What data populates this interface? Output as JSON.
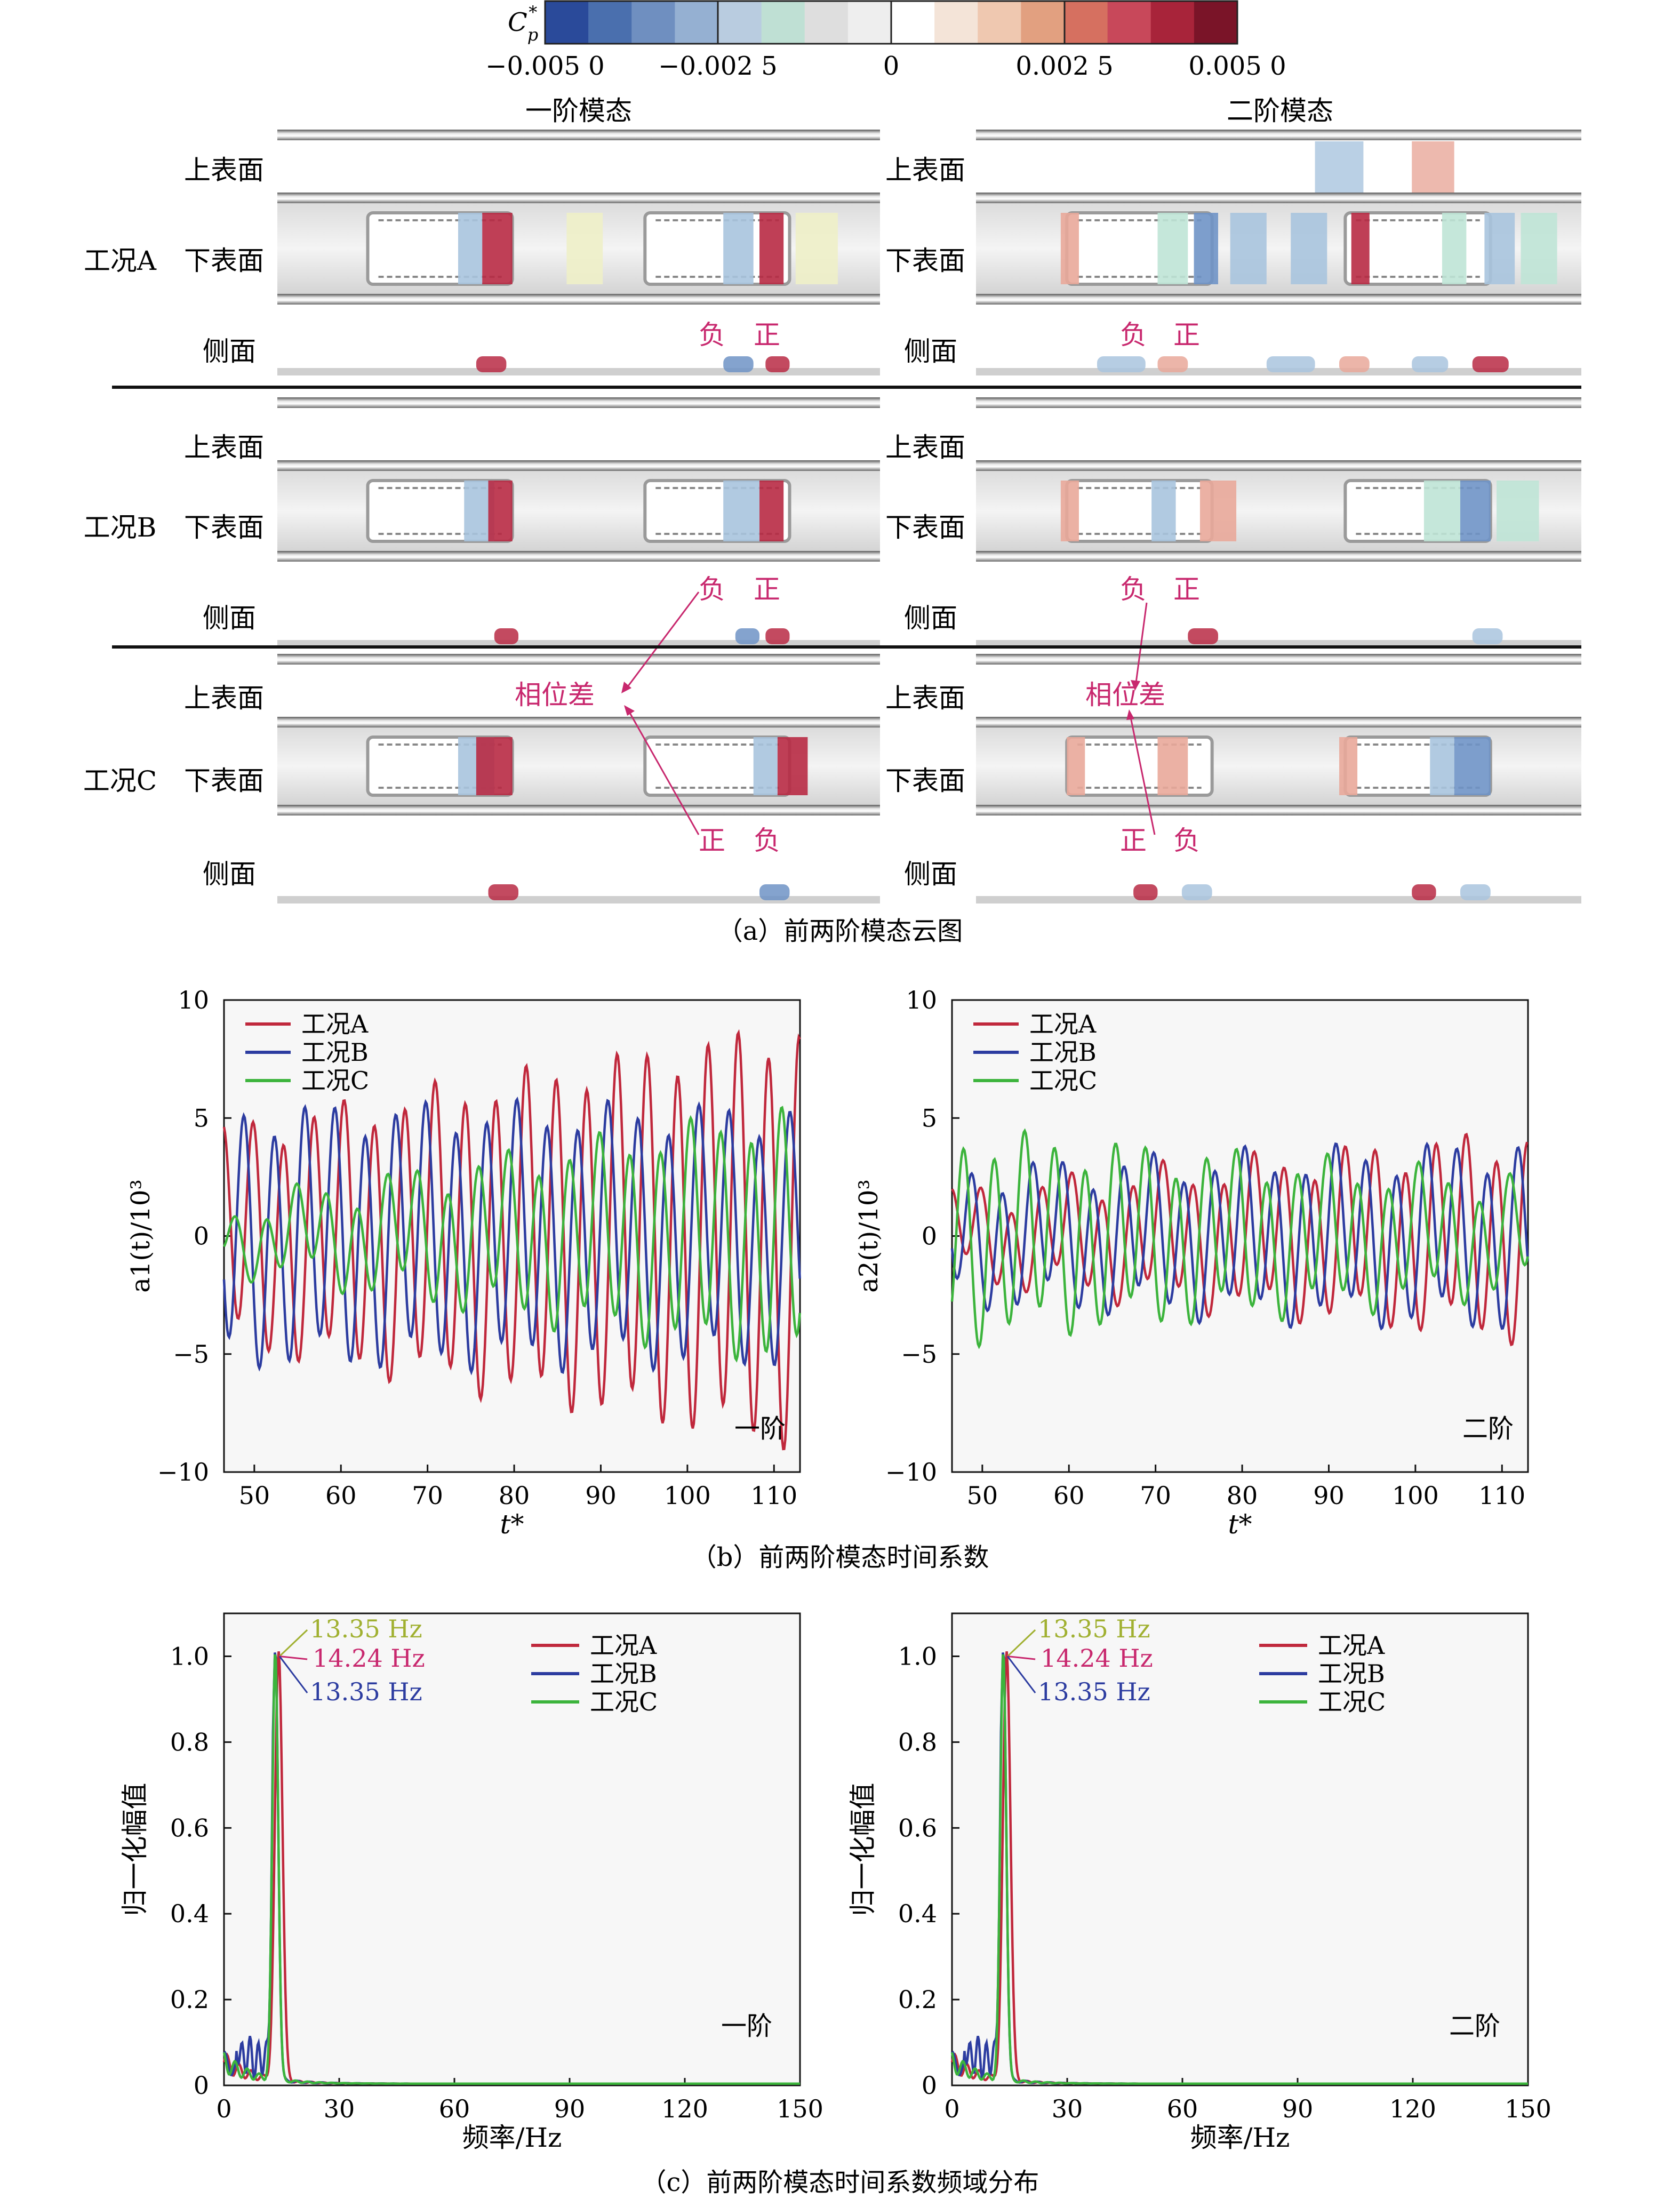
{
  "colorbar": {
    "label": "C*p",
    "label_main": "C",
    "label_sub": "p",
    "label_sup": "*",
    "ticks": [
      "−0.005 0",
      "−0.002 5",
      "0",
      "0.002 5",
      "0.005 0"
    ],
    "colors": [
      "#2a4a9a",
      "#4a6fae",
      "#6f8fc0",
      "#95b0d2",
      "#b9cce0",
      "#bfe0d4",
      "#dedede",
      "#eeeeee",
      "#ffffff",
      "#f4e4d8",
      "#efc8b0",
      "#e2a080",
      "#d67060",
      "#c8485a",
      "#a8243a",
      "#7a1428"
    ]
  },
  "panel_a": {
    "caption": "（a）前两阶模态云图",
    "mode1_title": "一阶模态",
    "mode2_title": "二阶模态",
    "surfaces": [
      "上表面",
      "下表面",
      "侧面"
    ],
    "conditions": [
      "工况A",
      "工况B",
      "工况C"
    ],
    "neg": "负",
    "pos": "正",
    "phase": "相位差"
  },
  "panel_b": {
    "caption": "（b）前两阶模态时间系数",
    "xlabel": "t*",
    "ylabel1": "a1(t)/10³",
    "ylabel2": "a2(t)/10³",
    "tag1": "一阶",
    "tag2": "二阶",
    "legend": [
      "工况A",
      "工况B",
      "工况C"
    ],
    "x_ticks": [
      "50",
      "60",
      "70",
      "80",
      "90",
      "100",
      "110"
    ],
    "y_ticks": [
      "10",
      "5",
      "0",
      "−5",
      "−10"
    ]
  },
  "panel_c": {
    "caption": "（c）前两阶模态时间系数频域分布",
    "xlabel": "频率/Hz",
    "ylabel": "归一化幅值",
    "tag1": "一阶",
    "tag2": "二阶",
    "legend": [
      "工况A",
      "工况B",
      "工况C"
    ],
    "x_ticks": [
      "0",
      "30",
      "60",
      "90",
      "120",
      "150"
    ],
    "y_ticks": [
      "1.0",
      "0.8",
      "0.6",
      "0.4",
      "0.2",
      "0"
    ],
    "peak_labels": [
      "13.35 Hz",
      "14.24 Hz",
      "13.35 Hz"
    ]
  },
  "series_colors": {
    "A": "#c0283c",
    "B": "#2c3ca0",
    "C": "#3cb43c",
    "peak_C": "#a0b030",
    "pink": "#c8286e"
  },
  "chart_data": [
    {
      "type": "line",
      "title": "一阶",
      "xlabel": "t*",
      "ylabel": "a1(t)/10³",
      "xlim": [
        46.5,
        113
      ],
      "ylim": [
        -10,
        10
      ],
      "series": [
        {
          "name": "工况A",
          "amplitude_start": 4.2,
          "amplitude_end": 8.5,
          "period": 3.5,
          "offset": 0
        },
        {
          "name": "工况B",
          "amplitude_start": 5.0,
          "amplitude_end": 5.0,
          "period": 3.5,
          "offset": 0
        },
        {
          "name": "工况C",
          "amplitude_start": 1.0,
          "amplitude_end": 5.0,
          "period": 3.5,
          "offset": 0
        }
      ]
    },
    {
      "type": "line",
      "title": "二阶",
      "xlabel": "t*",
      "ylabel": "a2(t)/10³",
      "xlim": [
        46.5,
        113
      ],
      "ylim": [
        -10,
        10
      ],
      "series": [
        {
          "name": "工况A",
          "amplitude_start": 1.5,
          "amplitude_end": 4.0,
          "period": 3.5,
          "offset": 0
        },
        {
          "name": "工况B",
          "amplitude_start": 2.5,
          "amplitude_end": 3.5,
          "period": 3.5,
          "offset": 0
        },
        {
          "name": "工况C",
          "amplitude_start": 4.0,
          "amplitude_end": 2.0,
          "period": 3.5,
          "offset": 0
        }
      ]
    },
    {
      "type": "line",
      "title": "一阶",
      "xlabel": "频率/Hz",
      "ylabel": "归一化幅值",
      "xlim": [
        0,
        150
      ],
      "ylim": [
        0,
        1.1
      ],
      "peaks": [
        {
          "name": "工况A",
          "frequency_hz": 14.24,
          "amplitude": 1.0
        },
        {
          "name": "工况B",
          "frequency_hz": 13.35,
          "amplitude": 1.0
        },
        {
          "name": "工况C",
          "frequency_hz": 13.35,
          "amplitude": 1.0
        }
      ]
    },
    {
      "type": "line",
      "title": "二阶",
      "xlabel": "频率/Hz",
      "ylabel": "归一化幅值",
      "xlim": [
        0,
        150
      ],
      "ylim": [
        0,
        1.1
      ],
      "peaks": [
        {
          "name": "工况A",
          "frequency_hz": 14.24,
          "amplitude": 1.0
        },
        {
          "name": "工况B",
          "frequency_hz": 13.35,
          "amplitude": 1.0
        },
        {
          "name": "工况C",
          "frequency_hz": 13.35,
          "amplitude": 1.0
        }
      ]
    }
  ]
}
